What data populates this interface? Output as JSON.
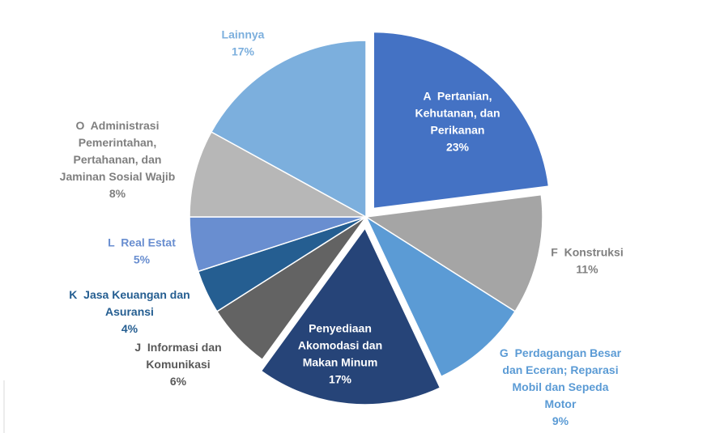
{
  "chart_data": {
    "type": "pie",
    "categories": [
      "A  Pertanian, Kehutanan, dan Perikanan",
      "F  Konstruksi",
      "G  Perdagangan Besar dan Eceran; Reparasi Mobil dan Sepeda Motor",
      "Penyediaan Akomodasi dan Makan Minum",
      "J  Informasi dan Komunikasi",
      "K  Jasa Keuangan dan Asuransi",
      "L  Real Estat",
      "O  Administrasi Pemerintahan, Pertahanan, dan Jaminan Sosial Wajib",
      "Lainnya"
    ],
    "values": [
      23,
      11,
      9,
      17,
      6,
      4,
      5,
      8,
      17
    ],
    "value_labels": [
      "23%",
      "11%",
      "9%",
      "17%",
      "6%",
      "4%",
      "5%",
      "8%",
      "17%"
    ],
    "colors": [
      "#4472c4",
      "#a5a5a5",
      "#5b9bd5",
      "#264478",
      "#636363",
      "#255e91",
      "#698ed0",
      "#b7b7b7",
      "#7cafdd"
    ],
    "label_colors": [
      "#ffffff",
      "#7f7f7f",
      "#5b9bd5",
      "#ffffff",
      "#595959",
      "#255e91",
      "#698ed0",
      "#7f7f7f",
      "#7cafdd"
    ],
    "explode": [
      true,
      false,
      false,
      true,
      false,
      false,
      false,
      false,
      false
    ]
  }
}
